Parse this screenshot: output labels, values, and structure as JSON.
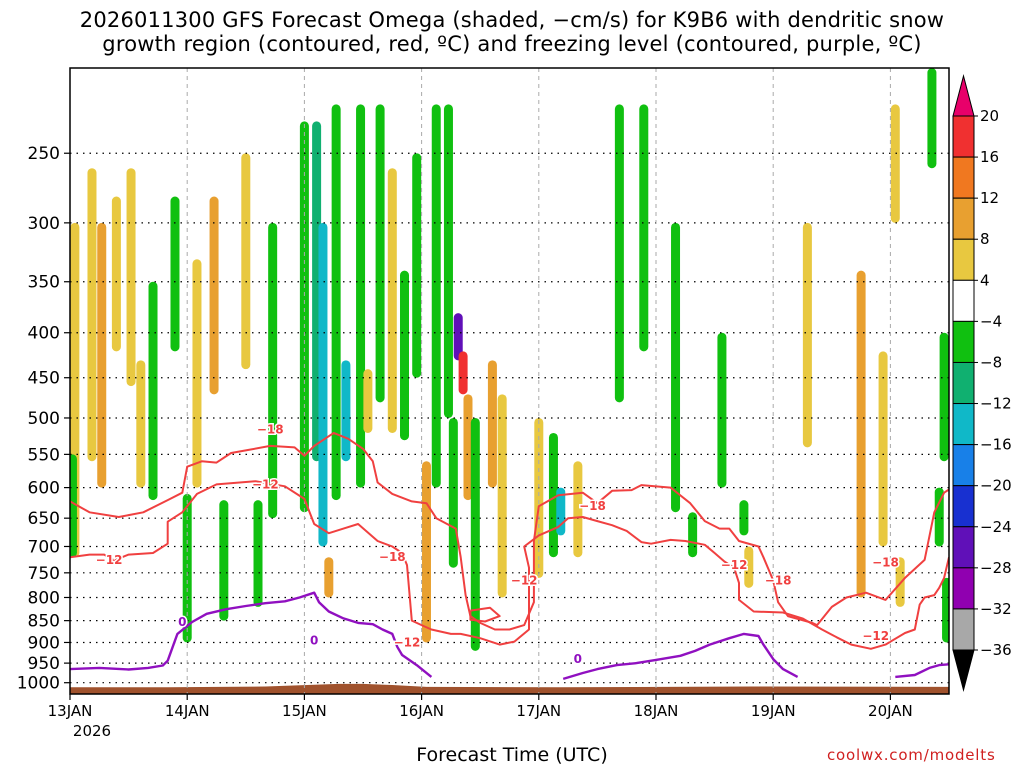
{
  "title_line1": "2026011300 GFS Forecast Omega (shaded, −cm/s) for K9B6 with dendritic snow",
  "title_line2": "growth region (contoured, red, ºC) and freezing level (contoured, purple, ºC)",
  "xlabel": "Forecast Time (UTC)",
  "credit": "coolwx.com/modelts",
  "chart_data": {
    "type": "heatmap",
    "title": "2026011300 GFS Forecast Omega (shaded, −cm/s) for K9B6 with dendritic snow growth region (contoured, red, ºC) and freezing level (contoured, purple, ºC)",
    "xlabel": "Forecast Time (UTC)",
    "ylabel": "",
    "x_ticks": [
      "13JAN",
      "14JAN",
      "15JAN",
      "16JAN",
      "17JAN",
      "18JAN",
      "19JAN",
      "20JAN"
    ],
    "x_tick_year": "2026",
    "x_range_hours": [
      0,
      180
    ],
    "y_ticks": [
      250,
      300,
      350,
      400,
      450,
      500,
      550,
      600,
      650,
      700,
      750,
      800,
      850,
      900,
      950,
      1000
    ],
    "y_range_hPa": [
      200,
      1030
    ],
    "y_scale": "log",
    "grid": true,
    "colorbar": {
      "labels": [
        "20",
        "16",
        "12",
        "8",
        "4",
        "−4",
        "−8",
        "−12",
        "−16",
        "−20",
        "−24",
        "−28",
        "−32",
        "−36"
      ],
      "bins": [
        {
          "min": 20,
          "max": null,
          "color": "#e8006a"
        },
        {
          "min": 16,
          "max": 20,
          "color": "#f03030"
        },
        {
          "min": 12,
          "max": 16,
          "color": "#f07820"
        },
        {
          "min": 8,
          "max": 12,
          "color": "#e8a030"
        },
        {
          "min": 4,
          "max": 8,
          "color": "#e8c840"
        },
        {
          "min": -4,
          "max": 4,
          "color": "#ffffff"
        },
        {
          "min": -8,
          "max": -4,
          "color": "#10c010"
        },
        {
          "min": -12,
          "max": -8,
          "color": "#10b070"
        },
        {
          "min": -16,
          "max": -12,
          "color": "#10b8c8"
        },
        {
          "min": -20,
          "max": -16,
          "color": "#1880e8"
        },
        {
          "min": -24,
          "max": -20,
          "color": "#1830d0"
        },
        {
          "min": -28,
          "max": -24,
          "color": "#6010b8"
        },
        {
          "min": -32,
          "max": -28,
          "color": "#9000b0"
        },
        {
          "min": -36,
          "max": -32,
          "color": "#a8a8a8"
        },
        {
          "min": null,
          "max": -36,
          "color": "#000000"
        }
      ]
    },
    "terrain_color": "#a0522d",
    "dgz_color": "#f04040",
    "freezing_color": "#9010c0",
    "contour_labels": [
      {
        "text": "−18",
        "color": "#f04040",
        "hour": 41,
        "p": 515
      },
      {
        "text": "−12",
        "color": "#f04040",
        "hour": 40,
        "p": 595
      },
      {
        "text": "−12",
        "color": "#f04040",
        "hour": 8,
        "p": 725
      },
      {
        "text": "−18",
        "color": "#f04040",
        "hour": 66,
        "p": 720
      },
      {
        "text": "−12",
        "color": "#f04040",
        "hour": 69,
        "p": 900
      },
      {
        "text": "−12",
        "color": "#f04040",
        "hour": 93,
        "p": 765
      },
      {
        "text": "−18",
        "color": "#f04040",
        "hour": 107,
        "p": 630
      },
      {
        "text": "−12",
        "color": "#f04040",
        "hour": 136,
        "p": 735
      },
      {
        "text": "−18",
        "color": "#f04040",
        "hour": 145,
        "p": 765
      },
      {
        "text": "−18",
        "color": "#f04040",
        "hour": 167,
        "p": 730
      },
      {
        "text": "−12",
        "color": "#f04040",
        "hour": 165,
        "p": 885
      },
      {
        "text": "0",
        "color": "#9010c0",
        "hour": 23,
        "p": 853
      },
      {
        "text": "0",
        "color": "#9010c0",
        "hour": 50,
        "p": 895
      },
      {
        "text": "0",
        "color": "#9010c0",
        "hour": 104,
        "p": 940
      }
    ],
    "dgz_contours": [
      [
        [
          0,
          622
        ],
        [
          4,
          640
        ],
        [
          10,
          648
        ],
        [
          15,
          640
        ],
        [
          20,
          620
        ],
        [
          23,
          608
        ],
        [
          24,
          568
        ],
        [
          27,
          560
        ],
        [
          30,
          562
        ],
        [
          33,
          548
        ],
        [
          37,
          543
        ],
        [
          41,
          538
        ],
        [
          46,
          540
        ],
        [
          48,
          552
        ],
        [
          50,
          538
        ],
        [
          54,
          520
        ],
        [
          57,
          528
        ],
        [
          60,
          542
        ],
        [
          62,
          560
        ],
        [
          63,
          592
        ],
        [
          66,
          610
        ],
        [
          70,
          622
        ],
        [
          73,
          625
        ],
        [
          75,
          650
        ],
        [
          79,
          668
        ],
        [
          80,
          720
        ],
        [
          81,
          795
        ],
        [
          82,
          840
        ],
        [
          84,
          855
        ],
        [
          87,
          870
        ],
        [
          90,
          870
        ],
        [
          93,
          860
        ],
        [
          95,
          810
        ],
        [
          95,
          690
        ],
        [
          96,
          630
        ],
        [
          100,
          612
        ],
        [
          105,
          608
        ],
        [
          108,
          625
        ],
        [
          111,
          605
        ],
        [
          115,
          604
        ],
        [
          117,
          596
        ],
        [
          123,
          600
        ],
        [
          127,
          625
        ],
        [
          130,
          655
        ],
        [
          133,
          668
        ],
        [
          135,
          668
        ],
        [
          137,
          690
        ],
        [
          141,
          700
        ],
        [
          142,
          720
        ],
        [
          144,
          765
        ],
        [
          145,
          810
        ],
        [
          147,
          840
        ],
        [
          152,
          855
        ],
        [
          153,
          860
        ],
        [
          156,
          820
        ],
        [
          159,
          800
        ],
        [
          163,
          790
        ],
        [
          167,
          805
        ],
        [
          171,
          760
        ],
        [
          175,
          725
        ],
        [
          177,
          640
        ],
        [
          179,
          608
        ],
        [
          180,
          603
        ]
      ],
      [
        [
          0,
          720
        ],
        [
          4,
          715
        ],
        [
          7,
          715
        ],
        [
          9,
          726
        ],
        [
          12,
          715
        ],
        [
          17,
          712
        ],
        [
          20,
          695
        ],
        [
          20,
          656
        ],
        [
          23,
          640
        ],
        [
          26,
          610
        ],
        [
          30,
          595
        ],
        [
          38,
          590
        ],
        [
          44,
          598
        ],
        [
          48,
          618
        ],
        [
          50,
          660
        ],
        [
          53,
          676
        ],
        [
          56,
          668
        ],
        [
          59,
          660
        ],
        [
          63,
          690
        ],
        [
          66,
          700
        ],
        [
          68,
          712
        ],
        [
          69,
          735
        ],
        [
          70,
          850
        ],
        [
          72,
          860
        ],
        [
          74,
          870
        ],
        [
          78,
          880
        ],
        [
          80,
          880
        ],
        [
          84,
          890
        ],
        [
          88,
          905
        ],
        [
          91,
          898
        ],
        [
          94,
          870
        ],
        [
          94,
          740
        ],
        [
          93,
          700
        ],
        [
          96,
          680
        ],
        [
          100,
          665
        ],
        [
          102,
          650
        ],
        [
          105,
          648
        ],
        [
          108,
          655
        ],
        [
          111,
          662
        ],
        [
          114,
          672
        ],
        [
          117,
          692
        ],
        [
          119,
          695
        ],
        [
          123,
          688
        ],
        [
          126,
          690
        ],
        [
          130,
          697
        ],
        [
          132,
          712
        ],
        [
          134,
          728
        ],
        [
          136,
          740
        ],
        [
          137,
          770
        ],
        [
          137,
          805
        ],
        [
          140,
          830
        ],
        [
          146,
          832
        ],
        [
          150,
          845
        ],
        [
          154,
          870
        ],
        [
          157,
          888
        ],
        [
          160,
          905
        ],
        [
          164,
          915
        ],
        [
          167,
          905
        ],
        [
          171,
          878
        ],
        [
          173,
          870
        ],
        [
          174,
          815
        ],
        [
          175,
          800
        ],
        [
          177,
          795
        ],
        [
          178,
          780
        ],
        [
          179,
          760
        ],
        [
          180,
          720
        ]
      ],
      [
        [
          82,
          828
        ],
        [
          86,
          822
        ],
        [
          88,
          840
        ],
        [
          85,
          852
        ],
        [
          82,
          848
        ],
        [
          82,
          828
        ]
      ]
    ],
    "freezing_contours": [
      [
        [
          0,
          965
        ],
        [
          6,
          962
        ],
        [
          12,
          966
        ],
        [
          16,
          962
        ],
        [
          19,
          956
        ],
        [
          20,
          944
        ],
        [
          22,
          880
        ],
        [
          25,
          853
        ],
        [
          28,
          835
        ],
        [
          32,
          825
        ],
        [
          36,
          818
        ],
        [
          40,
          812
        ],
        [
          44,
          808
        ],
        [
          47,
          800
        ],
        [
          50,
          790
        ],
        [
          51,
          810
        ],
        [
          53,
          830
        ],
        [
          56,
          845
        ],
        [
          59,
          855
        ],
        [
          62,
          858
        ],
        [
          64,
          870
        ],
        [
          66,
          880
        ],
        [
          67,
          910
        ],
        [
          68,
          930
        ],
        [
          71,
          955
        ],
        [
          74,
          985
        ]
      ],
      [
        [
          101,
          990
        ],
        [
          105,
          975
        ],
        [
          108,
          965
        ],
        [
          112,
          955
        ],
        [
          116,
          950
        ],
        [
          120,
          942
        ],
        [
          125,
          932
        ],
        [
          128,
          920
        ],
        [
          131,
          905
        ],
        [
          135,
          890
        ],
        [
          138,
          880
        ],
        [
          141,
          885
        ],
        [
          142,
          905
        ],
        [
          144,
          940
        ],
        [
          146,
          965
        ],
        [
          149,
          985
        ]
      ],
      [
        [
          169,
          985
        ],
        [
          173,
          980
        ],
        [
          176,
          962
        ],
        [
          178,
          955
        ],
        [
          180,
          953
        ]
      ]
    ],
    "terrain_p_hPa": [
      [
        0,
        1012
      ],
      [
        20,
        1012
      ],
      [
        40,
        1010
      ],
      [
        55,
        1003
      ],
      [
        60,
        1003
      ],
      [
        66,
        1006
      ],
      [
        73,
        1011
      ],
      [
        100,
        1012
      ],
      [
        140,
        1010
      ],
      [
        180,
        1011
      ]
    ],
    "omega_features": [
      {
        "hour": 1.0,
        "p_top": 300,
        "p_bot": 720,
        "value": 6
      },
      {
        "hour": 0.5,
        "p_top": 550,
        "p_bot": 720,
        "value": -8
      },
      {
        "hour": 4.5,
        "p_top": 260,
        "p_bot": 560,
        "value": 6
      },
      {
        "hour": 6.5,
        "p_top": 300,
        "p_bot": 600,
        "value": 10
      },
      {
        "hour": 9.5,
        "p_top": 280,
        "p_bot": 420,
        "value": 6
      },
      {
        "hour": 12.5,
        "p_top": 260,
        "p_bot": 460,
        "value": 6
      },
      {
        "hour": 14.5,
        "p_top": 430,
        "p_bot": 600,
        "value": 6
      },
      {
        "hour": 17.0,
        "p_top": 350,
        "p_bot": 620,
        "value": -6
      },
      {
        "hour": 21.5,
        "p_top": 280,
        "p_bot": 420,
        "value": -6
      },
      {
        "hour": 24.0,
        "p_top": 610,
        "p_bot": 900,
        "value": -6
      },
      {
        "hour": 26.0,
        "p_top": 330,
        "p_bot": 600,
        "value": 6
      },
      {
        "hour": 29.5,
        "p_top": 280,
        "p_bot": 470,
        "value": 8
      },
      {
        "hour": 31.5,
        "p_top": 620,
        "p_bot": 850,
        "value": -6
      },
      {
        "hour": 36.0,
        "p_top": 250,
        "p_bot": 440,
        "value": 6
      },
      {
        "hour": 38.5,
        "p_top": 620,
        "p_bot": 820,
        "value": -6
      },
      {
        "hour": 41.5,
        "p_top": 300,
        "p_bot": 650,
        "value": -6
      },
      {
        "hour": 48.0,
        "p_top": 230,
        "p_bot": 640,
        "value": -6
      },
      {
        "hour": 50.5,
        "p_top": 230,
        "p_bot": 560,
        "value": -10
      },
      {
        "hour": 51.8,
        "p_top": 300,
        "p_bot": 700,
        "value": -14
      },
      {
        "hour": 53.0,
        "p_top": 720,
        "p_bot": 800,
        "value": 10
      },
      {
        "hour": 54.5,
        "p_top": 220,
        "p_bot": 620,
        "value": -6
      },
      {
        "hour": 56.5,
        "p_top": 430,
        "p_bot": 560,
        "value": -14
      },
      {
        "hour": 59.5,
        "p_top": 220,
        "p_bot": 600,
        "value": -8
      },
      {
        "hour": 61.0,
        "p_top": 440,
        "p_bot": 520,
        "value": 6
      },
      {
        "hour": 63.5,
        "p_top": 220,
        "p_bot": 480,
        "value": -6
      },
      {
        "hour": 66.0,
        "p_top": 260,
        "p_bot": 520,
        "value": 6
      },
      {
        "hour": 68.5,
        "p_top": 340,
        "p_bot": 530,
        "value": -6
      },
      {
        "hour": 71.0,
        "p_top": 250,
        "p_bot": 450,
        "value": -8
      },
      {
        "hour": 73.0,
        "p_top": 560,
        "p_bot": 900,
        "value": 8
      },
      {
        "hour": 75.0,
        "p_top": 220,
        "p_bot": 600,
        "value": -6
      },
      {
        "hour": 77.5,
        "p_top": 220,
        "p_bot": 500,
        "value": -8
      },
      {
        "hour": 78.5,
        "p_top": 500,
        "p_bot": 740,
        "value": -6
      },
      {
        "hour": 79.5,
        "p_top": 380,
        "p_bot": 430,
        "value": -26
      },
      {
        "hour": 80.5,
        "p_top": 420,
        "p_bot": 470,
        "value": 18
      },
      {
        "hour": 81.5,
        "p_top": 470,
        "p_bot": 620,
        "value": 8
      },
      {
        "hour": 83.0,
        "p_top": 500,
        "p_bot": 920,
        "value": -6
      },
      {
        "hour": 86.5,
        "p_top": 430,
        "p_bot": 600,
        "value": 8
      },
      {
        "hour": 88.5,
        "p_top": 470,
        "p_bot": 800,
        "value": 6
      },
      {
        "hour": 96.0,
        "p_top": 500,
        "p_bot": 760,
        "value": 6
      },
      {
        "hour": 99.0,
        "p_top": 520,
        "p_bot": 720,
        "value": -6
      },
      {
        "hour": 100.5,
        "p_top": 600,
        "p_bot": 680,
        "value": -14
      },
      {
        "hour": 104.0,
        "p_top": 560,
        "p_bot": 720,
        "value": 6
      },
      {
        "hour": 112.5,
        "p_top": 220,
        "p_bot": 480,
        "value": -6
      },
      {
        "hour": 117.5,
        "p_top": 220,
        "p_bot": 420,
        "value": -6
      },
      {
        "hour": 124.0,
        "p_top": 300,
        "p_bot": 640,
        "value": -6
      },
      {
        "hour": 127.5,
        "p_top": 640,
        "p_bot": 720,
        "value": -6
      },
      {
        "hour": 133.5,
        "p_top": 400,
        "p_bot": 600,
        "value": -6
      },
      {
        "hour": 138.0,
        "p_top": 620,
        "p_bot": 680,
        "value": -6
      },
      {
        "hour": 139.0,
        "p_top": 700,
        "p_bot": 780,
        "value": 6
      },
      {
        "hour": 151.0,
        "p_top": 300,
        "p_bot": 540,
        "value": 6
      },
      {
        "hour": 162.0,
        "p_top": 340,
        "p_bot": 800,
        "value": 8
      },
      {
        "hour": 166.5,
        "p_top": 420,
        "p_bot": 700,
        "value": 6
      },
      {
        "hour": 169.0,
        "p_top": 220,
        "p_bot": 300,
        "value": 6
      },
      {
        "hour": 170.0,
        "p_top": 720,
        "p_bot": 820,
        "value": 6
      },
      {
        "hour": 176.5,
        "p_top": 200,
        "p_bot": 260,
        "value": -6
      },
      {
        "hour": 178.0,
        "p_top": 600,
        "p_bot": 700,
        "value": -6
      },
      {
        "hour": 179.0,
        "p_top": 400,
        "p_bot": 560,
        "value": -8
      },
      {
        "hour": 179.5,
        "p_top": 760,
        "p_bot": 900,
        "value": -6
      }
    ]
  }
}
